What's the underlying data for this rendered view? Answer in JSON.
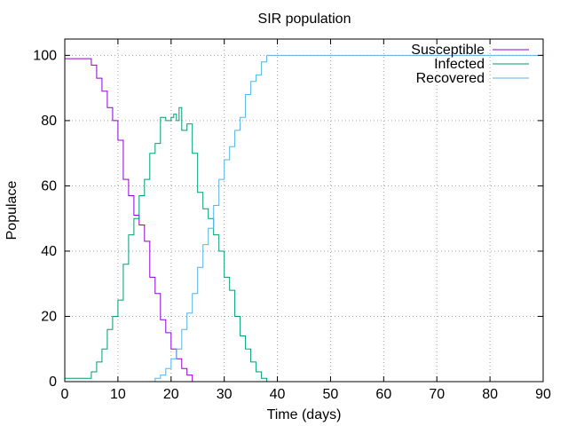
{
  "chart_data": {
    "type": "line",
    "title": "SIR population",
    "xlabel": "Time (days)",
    "ylabel": "Populace",
    "xlim": [
      0,
      90
    ],
    "ylim": [
      0,
      105
    ],
    "x_ticks": [
      0,
      10,
      20,
      30,
      40,
      50,
      60,
      70,
      80,
      90
    ],
    "y_ticks": [
      0,
      20,
      40,
      60,
      80,
      100
    ],
    "grid": true,
    "legend_position": "top-right",
    "series": [
      {
        "name": "Susceptible",
        "color": "#9400d3",
        "x": [
          0,
          3.5,
          5,
          6,
          7,
          8,
          9,
          10,
          11,
          12,
          13,
          14,
          15,
          16,
          17,
          18,
          19,
          20,
          21,
          22,
          23,
          24
        ],
        "y": [
          99,
          99,
          97,
          93,
          89,
          84,
          80,
          74,
          62,
          57,
          51,
          48,
          43,
          32,
          27,
          19,
          15,
          10,
          7,
          4,
          2,
          0
        ]
      },
      {
        "name": "Infected",
        "color": "#009e73",
        "x": [
          0,
          4,
          5,
          6,
          7,
          8,
          9,
          10,
          11,
          12,
          13,
          14,
          15,
          16,
          17,
          18,
          19,
          20,
          20.5,
          21,
          21.5,
          22,
          23,
          24,
          25,
          26,
          27,
          28,
          29,
          30,
          31,
          32,
          33,
          34,
          35,
          36,
          37,
          38
        ],
        "y": [
          1,
          1,
          3,
          6,
          10,
          16,
          20,
          25,
          36,
          45,
          50,
          57,
          62,
          70,
          73,
          81,
          80,
          81,
          82,
          80,
          84,
          77,
          79,
          70,
          58,
          53,
          50,
          45,
          40,
          32,
          28,
          20,
          14,
          10,
          6,
          3,
          1,
          0
        ]
      },
      {
        "name": "Recovered",
        "color": "#56b4e9",
        "x": [
          13,
          16,
          17,
          18,
          19,
          20,
          21,
          22,
          23,
          24,
          25,
          26,
          27,
          28,
          29,
          30,
          31,
          32,
          33,
          34,
          35,
          36,
          37,
          38,
          90
        ],
        "y": [
          0,
          0,
          1,
          2,
          4,
          7,
          10,
          16,
          21,
          27,
          35,
          42,
          47,
          54,
          62,
          68,
          72,
          77,
          81,
          88,
          92,
          94,
          98,
          100,
          100
        ]
      }
    ]
  }
}
